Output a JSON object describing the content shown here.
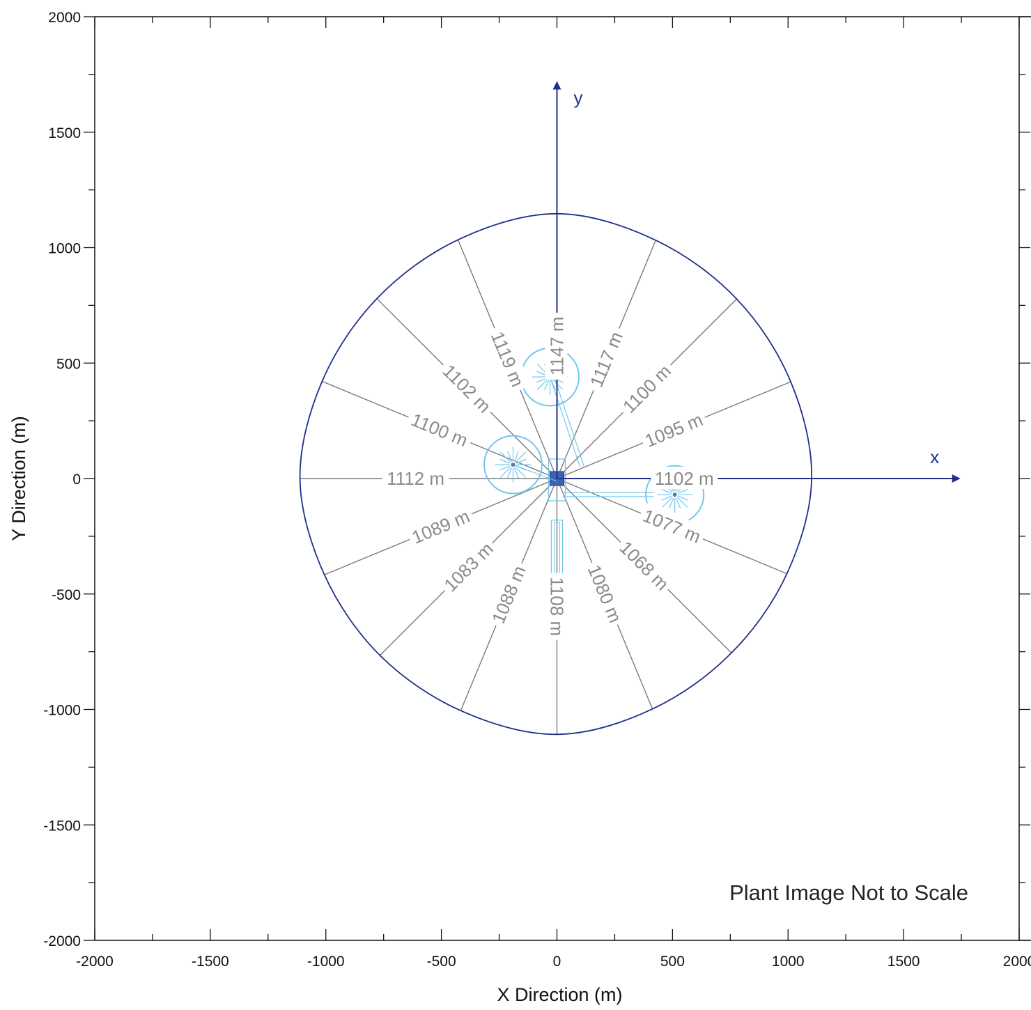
{
  "chart_data": {
    "type": "diagram",
    "xlabel": "X Direction (m)",
    "ylabel": "Y Direction (m)",
    "xlim": [
      -2000,
      2000
    ],
    "ylim": [
      -2000,
      2000
    ],
    "x_ticks": [
      -2000,
      -1500,
      -1000,
      -500,
      0,
      500,
      1000,
      1500,
      2000
    ],
    "y_ticks": [
      -2000,
      -1500,
      -1000,
      -500,
      0,
      500,
      1000,
      1500,
      2000
    ],
    "x_tick_labels": [
      "-2000",
      "-1500",
      "-1000",
      "-500",
      "0",
      "500",
      "1000",
      "1500",
      "2000"
    ],
    "y_tick_labels": [
      "-2000",
      "-1500",
      "-1000",
      "-500",
      "0",
      "500",
      "1000",
      "1500",
      "2000"
    ],
    "minor_tick_step": 250,
    "reference_axes": {
      "x_label": "x",
      "y_label": "y"
    },
    "note": "Plant Image Not to Scale",
    "colors": {
      "boundary": "#1f2f8a",
      "radial": "#7a7a7a",
      "plant": "#74c6ee",
      "labels": "#8a8a8a"
    },
    "radial_distances": [
      {
        "bearing_deg": 0,
        "distance_m": 1147,
        "label": "1147 m"
      },
      {
        "bearing_deg": 22.5,
        "distance_m": 1117,
        "label": "1117 m"
      },
      {
        "bearing_deg": 45,
        "distance_m": 1100,
        "label": "1100 m"
      },
      {
        "bearing_deg": 67.5,
        "distance_m": 1095,
        "label": "1095 m"
      },
      {
        "bearing_deg": 90,
        "distance_m": 1102,
        "label": "1102 m"
      },
      {
        "bearing_deg": 112.5,
        "distance_m": 1077,
        "label": "1077 m"
      },
      {
        "bearing_deg": 135,
        "distance_m": 1068,
        "label": "1068 m"
      },
      {
        "bearing_deg": 157.5,
        "distance_m": 1080,
        "label": "1080 m"
      },
      {
        "bearing_deg": 180,
        "distance_m": 1108,
        "label": "1108 m"
      },
      {
        "bearing_deg": 202.5,
        "distance_m": 1088,
        "label": "1088 m"
      },
      {
        "bearing_deg": 225,
        "distance_m": 1083,
        "label": "1083 m"
      },
      {
        "bearing_deg": 247.5,
        "distance_m": 1089,
        "label": "1089 m"
      },
      {
        "bearing_deg": 270,
        "distance_m": 1112,
        "label": "1112 m"
      },
      {
        "bearing_deg": 292.5,
        "distance_m": 1100,
        "label": "1100 m"
      },
      {
        "bearing_deg": 315,
        "distance_m": 1102,
        "label": "1102 m"
      },
      {
        "bearing_deg": 337.5,
        "distance_m": 1119,
        "label": "1119 m"
      }
    ],
    "plant_circles": [
      {
        "x": -190,
        "y": 60,
        "r": 125
      },
      {
        "x": -30,
        "y": 440,
        "r": 125
      },
      {
        "x": 510,
        "y": -70,
        "r": 125
      }
    ]
  }
}
